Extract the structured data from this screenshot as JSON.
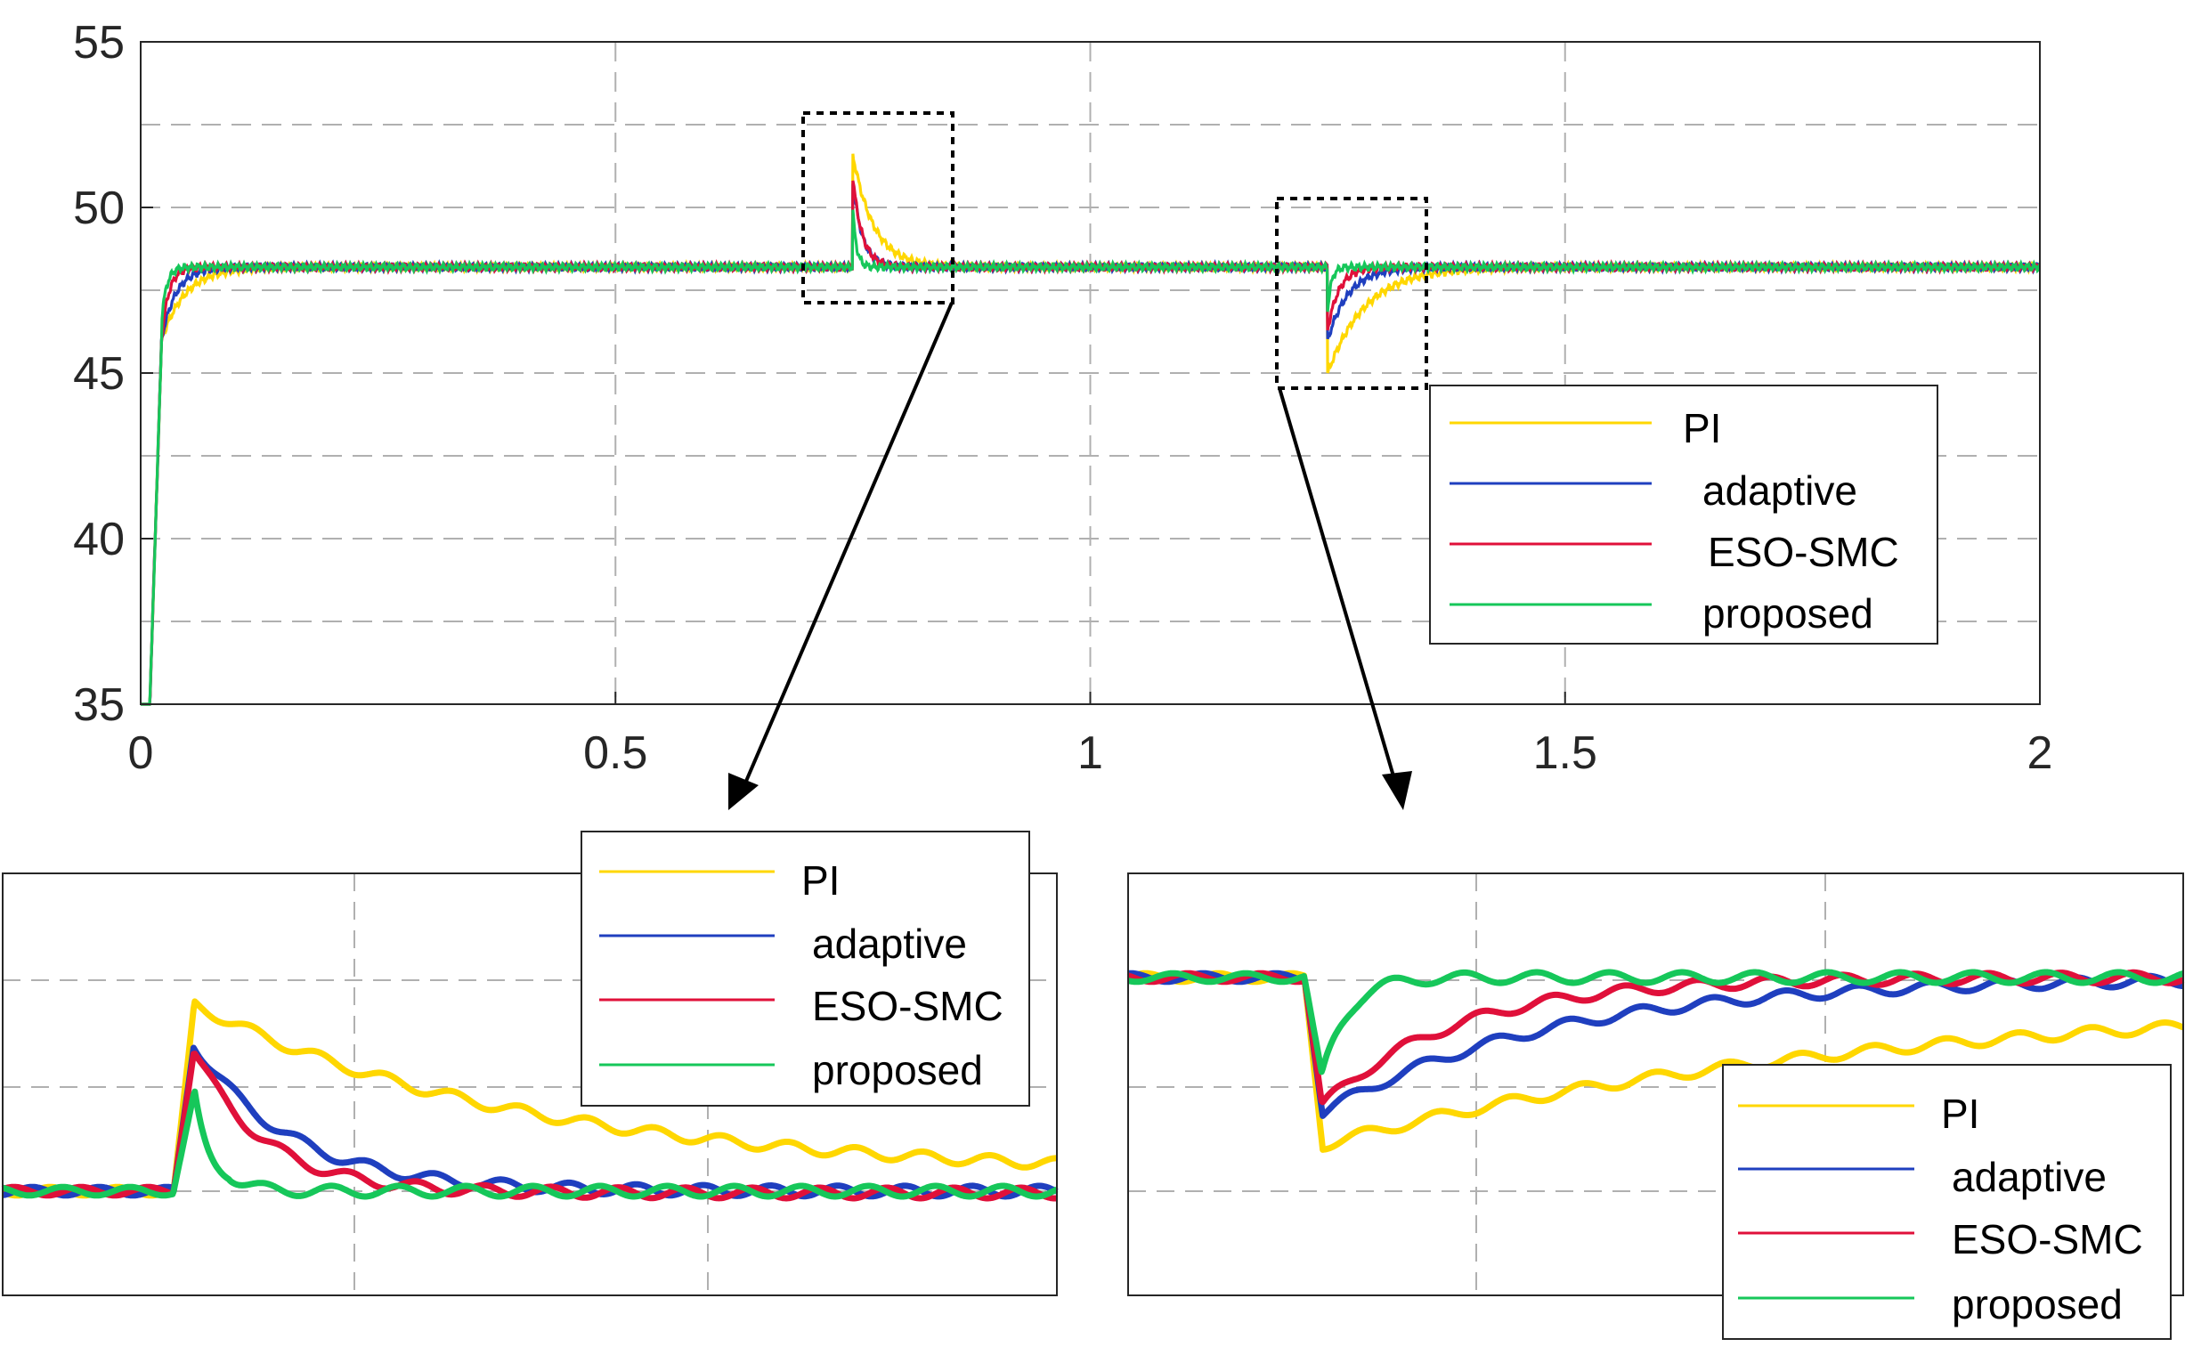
{
  "colors": {
    "PI": "#ffd700",
    "adaptive": "#1f3fbf",
    "ESO-SMC": "#e0103a",
    "proposed": "#16c75a",
    "grid": "#b0b0b0",
    "axis": "#262626"
  },
  "chart_data": [
    {
      "panel": "main",
      "type": "line",
      "title": "",
      "xlabel": "",
      "ylabel": "",
      "xlim": [
        0,
        2
      ],
      "ylim": [
        35,
        55
      ],
      "xticks": [
        "0",
        "0.5",
        "1",
        "1.5",
        "2"
      ],
      "yticks": [
        "35",
        "40",
        "45",
        "50",
        "55"
      ],
      "grid": true,
      "legend_position": "lower-right",
      "legend": [
        "PI",
        "adaptive",
        "ESO-SMC",
        "proposed"
      ],
      "steady_state": 48.2,
      "events": [
        {
          "t": 0.75,
          "type": "step-up"
        },
        {
          "t": 1.25,
          "type": "step-down"
        }
      ],
      "series": [
        {
          "name": "PI",
          "rise_time": 0.1,
          "peak_up": 51.6,
          "dip_down": 45.0
        },
        {
          "name": "adaptive",
          "rise_time": 0.06,
          "peak_up": 50.8,
          "dip_down": 46.0
        },
        {
          "name": "ESO-SMC",
          "rise_time": 0.03,
          "peak_up": 50.9,
          "dip_down": 46.3
        },
        {
          "name": "proposed",
          "rise_time": 0.02,
          "peak_up": 49.9,
          "dip_down": 46.9
        }
      ],
      "zoom_boxes": [
        "step-up detail",
        "step-down detail"
      ]
    },
    {
      "panel": "zoom-left",
      "type": "line",
      "title": "",
      "grid": true,
      "legend_position": "top-right",
      "legend": [
        "PI",
        "adaptive",
        "ESO-SMC",
        "proposed"
      ],
      "series": [
        {
          "name": "PI",
          "peak": 51.6
        },
        {
          "name": "adaptive",
          "peak": 50.8
        },
        {
          "name": "ESO-SMC",
          "peak": 50.9
        },
        {
          "name": "proposed",
          "peak": 49.9
        }
      ]
    },
    {
      "panel": "zoom-right",
      "type": "line",
      "title": "",
      "grid": true,
      "legend_position": "bottom-right",
      "legend": [
        "PI",
        "adaptive",
        "ESO-SMC",
        "proposed"
      ],
      "series": [
        {
          "name": "PI",
          "dip": 45.0
        },
        {
          "name": "adaptive",
          "dip": 46.0
        },
        {
          "name": "ESO-SMC",
          "dip": 46.3
        },
        {
          "name": "proposed",
          "dip": 46.9
        }
      ]
    }
  ]
}
